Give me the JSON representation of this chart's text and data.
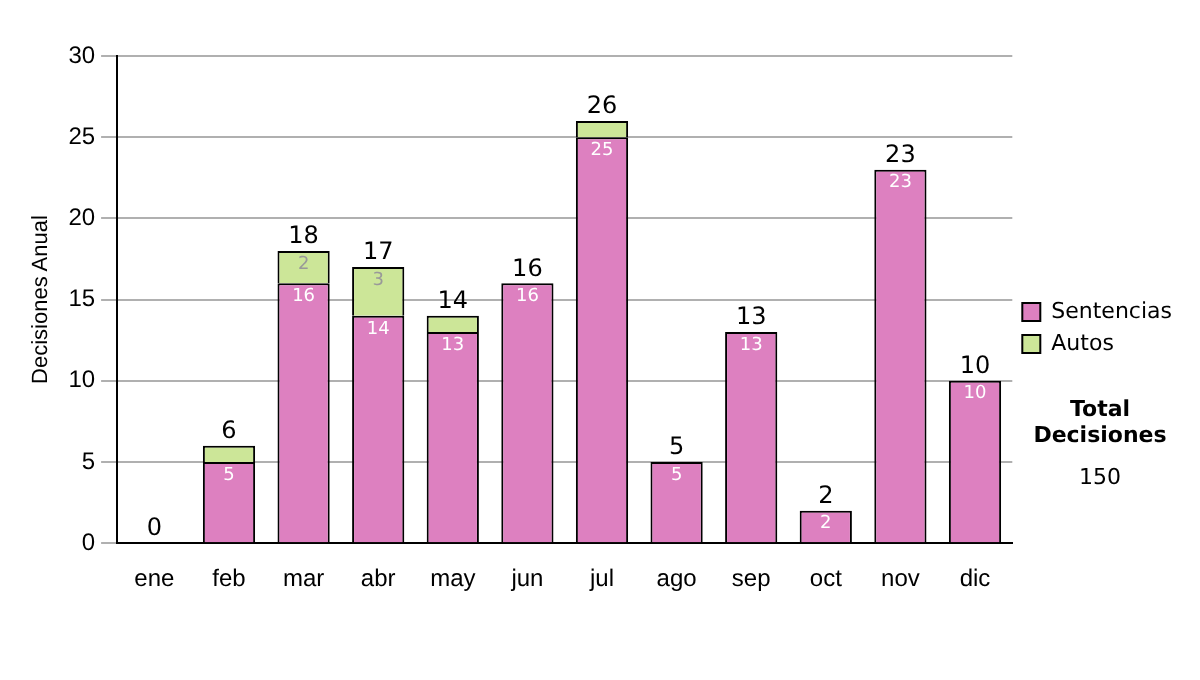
{
  "chart_data": {
    "type": "bar",
    "stacked": true,
    "ylabel": "Decisiones Anual",
    "categories": [
      "ene",
      "feb",
      "mar",
      "abr",
      "may",
      "jun",
      "jul",
      "ago",
      "sep",
      "oct",
      "nov",
      "dic"
    ],
    "series": [
      {
        "name": "Sentencias",
        "color": "#dd80c0",
        "values": [
          0,
          5,
          16,
          14,
          13,
          16,
          25,
          5,
          13,
          2,
          23,
          10
        ],
        "value_labels": [
          null,
          "5",
          "16",
          "14",
          "13",
          "16",
          "25",
          "5",
          "13",
          "2",
          "23",
          "10"
        ]
      },
      {
        "name": "Autos",
        "color": "#cce698",
        "values": [
          0,
          1,
          2,
          3,
          1,
          0,
          1,
          0,
          0,
          0,
          0,
          0
        ],
        "value_labels": [
          null,
          null,
          "2",
          "3",
          null,
          null,
          null,
          null,
          null,
          null,
          null,
          null
        ]
      }
    ],
    "totals": [
      "0",
      "6",
      "18",
      "17",
      "14",
      "16",
      "26",
      "5",
      "13",
      "2",
      "23",
      "10"
    ],
    "ylim": [
      0,
      30
    ],
    "yticks": [
      0,
      5,
      10,
      15,
      20,
      25,
      30
    ],
    "grid": "y",
    "legend": "right",
    "annotations": [
      "Total Decisiones",
      "150"
    ]
  }
}
